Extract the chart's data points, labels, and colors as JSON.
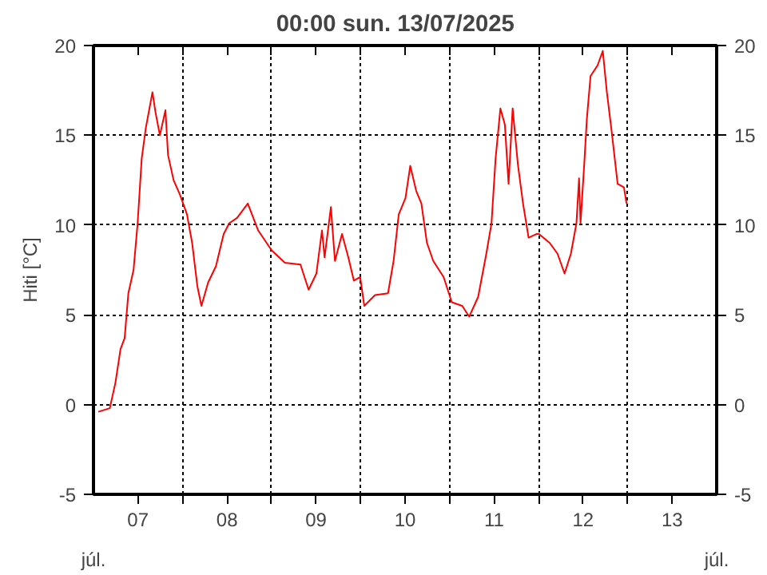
{
  "chart_data": {
    "type": "line",
    "title": "00:00   sun.  13/07/2025",
    "ylabel": "Hiti [°C]",
    "annotations": [
      "júl.",
      "júl."
    ],
    "xlim": [
      "2025-07-07T00:00",
      "2025-07-14T00:00"
    ],
    "xticks": [
      {
        "value": "2025-07-07T12:00",
        "label": "07"
      },
      {
        "value": "2025-07-08T12:00",
        "label": "08"
      },
      {
        "value": "2025-07-09T12:00",
        "label": "09"
      },
      {
        "value": "2025-07-10T12:00",
        "label": "10"
      },
      {
        "value": "2025-07-11T12:00",
        "label": "11"
      },
      {
        "value": "2025-07-12T12:00",
        "label": "12"
      },
      {
        "value": "2025-07-13T12:00",
        "label": "13"
      },
      {
        "value": "2025-07-08T00:00",
        "label": null
      },
      {
        "value": "2025-07-09T00:00",
        "label": null
      },
      {
        "value": "2025-07-10T00:00",
        "label": null
      },
      {
        "value": "2025-07-11T00:00",
        "label": null
      },
      {
        "value": "2025-07-12T00:00",
        "label": null
      },
      {
        "value": "2025-07-13T00:00",
        "label": null
      }
    ],
    "ylim": [
      -5,
      20
    ],
    "yticks": [
      -5,
      0,
      5,
      10,
      15,
      20
    ],
    "y2lim": [
      -5,
      20
    ],
    "y2ticks": [
      -5,
      0,
      5,
      10,
      15,
      20
    ],
    "grid": true,
    "line_style": "solid",
    "x": [
      "2025-07-07T01:18",
      "2025-07-07T04:24",
      "2025-07-07T05:54",
      "2025-07-07T07:18",
      "2025-07-07T08:24",
      "2025-07-07T09:24",
      "2025-07-07T10:48",
      "2025-07-07T11:54",
      "2025-07-07T13:00",
      "2025-07-07T14:06",
      "2025-07-07T15:54",
      "2025-07-07T16:42",
      "2025-07-07T17:54",
      "2025-07-07T19:24",
      "2025-07-07T20:06",
      "2025-07-07T21:36",
      "2025-07-07T23:18",
      "2025-07-08T01:12",
      "2025-07-08T02:36",
      "2025-07-08T04:00",
      "2025-07-08T05:06",
      "2025-07-08T06:54",
      "2025-07-08T09:00",
      "2025-07-08T11:06",
      "2025-07-08T12:36",
      "2025-07-08T14:42",
      "2025-07-08T17:36",
      "2025-07-08T20:24",
      "2025-07-09T00:00",
      "2025-07-09T03:36",
      "2025-07-09T07:48",
      "2025-07-09T10:00",
      "2025-07-09T12:06",
      "2025-07-09T13:36",
      "2025-07-09T14:18",
      "2025-07-09T16:00",
      "2025-07-09T17:06",
      "2025-07-09T19:00",
      "2025-07-09T20:42",
      "2025-07-09T22:12",
      "2025-07-09T23:54",
      "2025-07-10T01:00",
      "2025-07-10T03:54",
      "2025-07-10T07:24",
      "2025-07-10T08:54",
      "2025-07-10T10:18",
      "2025-07-10T12:06",
      "2025-07-10T13:24",
      "2025-07-10T15:00",
      "2025-07-10T16:24",
      "2025-07-10T17:54",
      "2025-07-10T19:36",
      "2025-07-10T22:24",
      "2025-07-11T00:36",
      "2025-07-11T03:24",
      "2025-07-11T05:18",
      "2025-07-11T07:42",
      "2025-07-11T09:54",
      "2025-07-11T11:18",
      "2025-07-11T12:24",
      "2025-07-11T13:42",
      "2025-07-11T14:54",
      "2025-07-11T15:54",
      "2025-07-11T17:00",
      "2025-07-11T18:24",
      "2025-07-11T19:48",
      "2025-07-11T21:18",
      "2025-07-11T23:24",
      "2025-07-12T00:06",
      "2025-07-12T03:00",
      "2025-07-12T05:06",
      "2025-07-12T07:00",
      "2025-07-12T08:42",
      "2025-07-12T10:12",
      "2025-07-12T10:54",
      "2025-07-12T11:18",
      "2025-07-12T12:18",
      "2025-07-12T13:00",
      "2025-07-12T14:00",
      "2025-07-12T15:54",
      "2025-07-12T17:18",
      "2025-07-12T18:24",
      "2025-07-12T19:42",
      "2025-07-12T21:18",
      "2025-07-12T23:00",
      "2025-07-12T23:42"
    ],
    "series": [
      {
        "color": "#ff0000",
        "values": [
          -0.4,
          -0.2,
          1.2,
          3.1,
          3.7,
          6.2,
          7.5,
          10.1,
          13.7,
          15.4,
          17.4,
          16.3,
          15.0,
          16.4,
          13.9,
          12.5,
          11.7,
          10.6,
          9.0,
          6.6,
          5.5,
          6.8,
          7.7,
          9.5,
          10.1,
          10.4,
          11.2,
          9.7,
          8.6,
          7.9,
          7.8,
          6.4,
          7.3,
          9.7,
          8.2,
          11.0,
          8.0,
          9.5,
          8.2,
          6.9,
          7.1,
          5.5,
          6.1,
          6.2,
          8.0,
          10.6,
          11.5,
          13.3,
          11.9,
          11.2,
          9.0,
          8.0,
          7.1,
          5.7,
          5.5,
          4.9,
          6.0,
          8.4,
          10.1,
          13.7,
          16.5,
          15.6,
          12.3,
          16.5,
          13.4,
          11.2,
          9.3,
          9.5,
          9.5,
          9.0,
          8.4,
          7.3,
          8.4,
          10.1,
          12.6,
          10.1,
          13.4,
          15.9,
          18.3,
          18.9,
          19.7,
          17.4,
          15.2,
          12.3,
          12.1,
          11.2
        ]
      }
    ]
  }
}
